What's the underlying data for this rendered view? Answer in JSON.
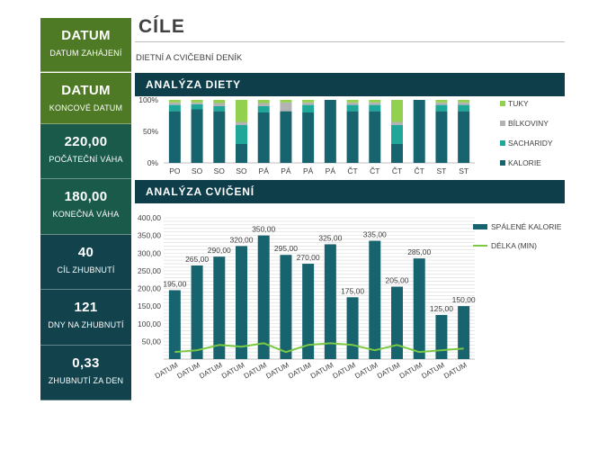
{
  "sidebar": {
    "tiles": [
      {
        "value": "DATUM",
        "label": "DATUM ZAHÁJENÍ"
      },
      {
        "value": "DATUM",
        "label": "KONCOVÉ DATUM"
      },
      {
        "value": "220,00",
        "label": "POČÁTEČNÍ VÁHA"
      },
      {
        "value": "180,00",
        "label": "KONEČNÁ VÁHA"
      },
      {
        "value": "40",
        "label": "CÍL ZHUBNUTÍ"
      },
      {
        "value": "121",
        "label": "DNY NA ZHUBNUTÍ"
      },
      {
        "value": "0,33",
        "label": "ZHUBNUTÍ ZA DEN"
      }
    ],
    "colors": [
      "#4e7a25",
      "#4e7a25",
      "#1a5a4a",
      "#1a5a4a",
      "#12434d",
      "#12434d",
      "#12434d"
    ]
  },
  "header": {
    "title": "CÍLE",
    "subtitle": "DIETNÍ A CVIČEBNÍ DENÍK"
  },
  "sections": {
    "diet_title": "ANALÝZA DIETY",
    "exercise_title": "ANALÝZA CVIČENÍ"
  },
  "chart_data": [
    {
      "type": "bar",
      "stacked": true,
      "percent": true,
      "categories": [
        "PO",
        "SO",
        "SO",
        "SO",
        "PÁ",
        "PÁ",
        "PÁ",
        "PÁ",
        "ČT",
        "ČT",
        "ČT",
        "ČT",
        "ST",
        "ST"
      ],
      "yticks": [
        "0%",
        "50%",
        "100%"
      ],
      "legend_position": "right",
      "series": [
        {
          "name": "KALORIE",
          "color": "#17646f",
          "values": [
            82,
            85,
            82,
            30,
            80,
            82,
            80,
            100,
            82,
            82,
            30,
            100,
            82,
            82
          ]
        },
        {
          "name": "SACHARIDY",
          "color": "#1fa89a",
          "values": [
            10,
            8,
            8,
            30,
            10,
            0,
            12,
            0,
            10,
            10,
            30,
            0,
            10,
            10
          ]
        },
        {
          "name": "BÍLKOVINY",
          "color": "#b3b3b3",
          "values": [
            4,
            3,
            5,
            5,
            5,
            14,
            4,
            0,
            4,
            4,
            5,
            0,
            4,
            4
          ]
        },
        {
          "name": "TUKY",
          "color": "#92d050",
          "values": [
            4,
            4,
            5,
            35,
            5,
            4,
            4,
            0,
            4,
            4,
            35,
            0,
            4,
            4
          ]
        }
      ]
    },
    {
      "type": "bar",
      "categories": [
        "DATUM",
        "DATUM",
        "DATUM",
        "DATUM",
        "DATUM",
        "DATUM",
        "DATUM",
        "DATUM",
        "DATUM",
        "DATUM",
        "DATUM",
        "DATUM",
        "DATUM",
        "DATUM"
      ],
      "ylim": [
        0,
        400
      ],
      "yticks": [
        "50,00",
        "100,00",
        "150,00",
        "200,00",
        "250,00",
        "300,00",
        "350,00",
        "400,00"
      ],
      "legend_position": "right",
      "series": [
        {
          "name": "SPÁLENÉ KALORIE",
          "color": "#17646f",
          "type": "bar",
          "values": [
            195,
            265,
            290,
            320,
            350,
            295,
            270,
            325,
            175,
            335,
            205,
            285,
            125,
            150
          ],
          "labels": [
            "195,00",
            "265,00",
            "290,00",
            "320,00",
            "350,00",
            "295,00",
            "270,00",
            "325,00",
            "175,00",
            "335,00",
            "205,00",
            "285,00",
            "125,00",
            "150,00"
          ]
        },
        {
          "name": "DÉLKA (MIN)",
          "color": "#7ac943",
          "type": "line",
          "values": [
            20,
            25,
            40,
            35,
            45,
            20,
            40,
            45,
            40,
            25,
            40,
            20,
            25,
            30
          ]
        }
      ]
    }
  ]
}
